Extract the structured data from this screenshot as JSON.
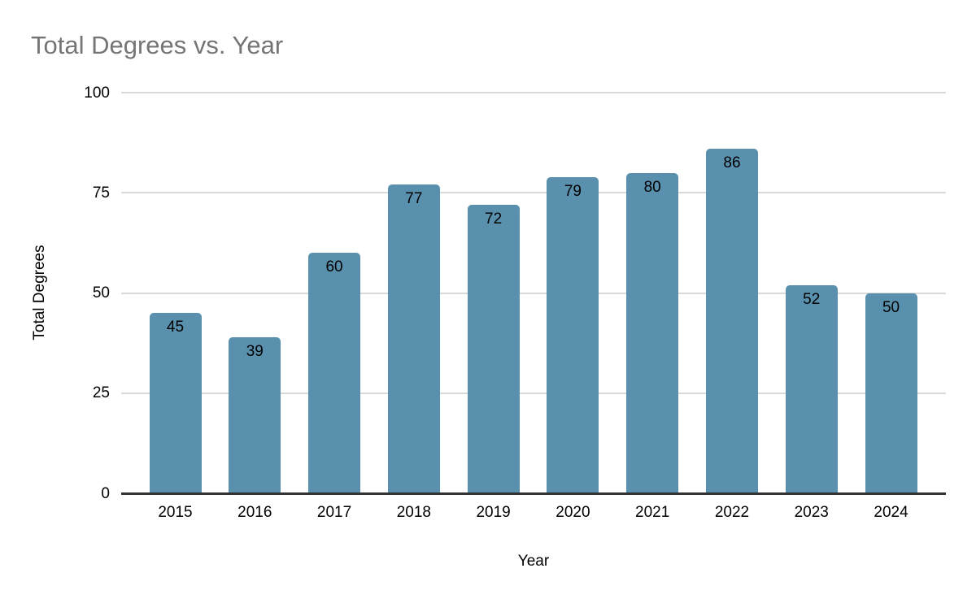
{
  "chart_data": {
    "type": "bar",
    "title": "Total Degrees vs. Year",
    "xlabel": "Year",
    "ylabel": "Total Degrees",
    "categories": [
      "2015",
      "2016",
      "2017",
      "2018",
      "2019",
      "2020",
      "2021",
      "2022",
      "2023",
      "2024"
    ],
    "values": [
      45,
      39,
      60,
      77,
      72,
      79,
      80,
      86,
      52,
      50
    ],
    "ylim": [
      0,
      100
    ],
    "yticks": [
      0,
      25,
      50,
      75,
      100
    ],
    "grid": "horizontal",
    "legend": "none",
    "value_labels": "inside-top"
  },
  "colors": {
    "bar": "#5890AD",
    "title_text": "#757575",
    "gridline": "#d9d9d9",
    "axis_line": "#333333",
    "label_text": "#000000",
    "background": "#ffffff"
  }
}
